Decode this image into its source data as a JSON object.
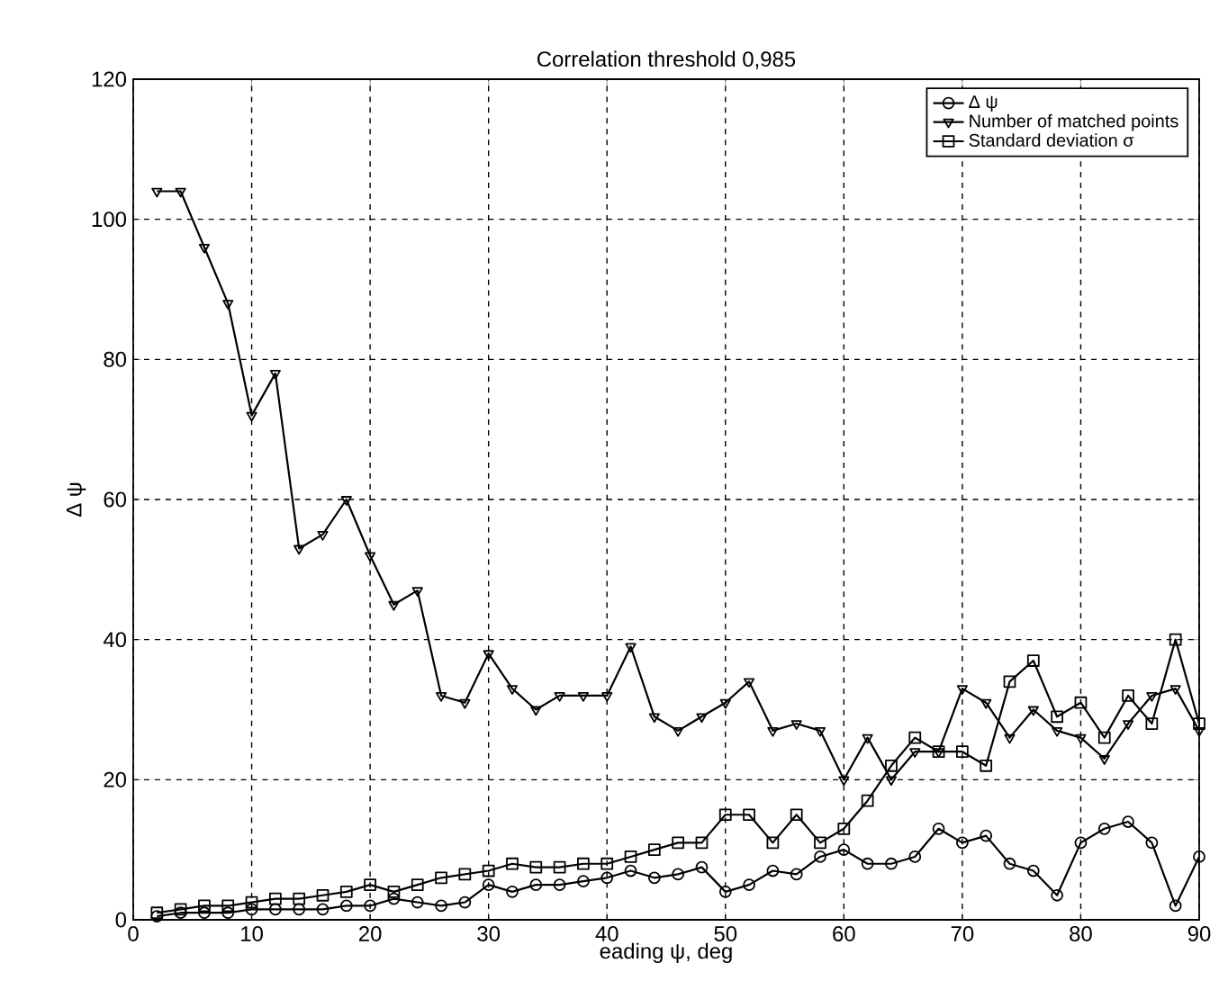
{
  "chart_data": {
    "type": "line",
    "title": "Correlation threshold 0,985",
    "xlabel": "eading ψ, deg",
    "ylabel": "Δ ψ",
    "x": [
      2,
      4,
      6,
      8,
      10,
      12,
      14,
      16,
      18,
      20,
      22,
      24,
      26,
      28,
      30,
      32,
      34,
      36,
      38,
      40,
      42,
      44,
      46,
      48,
      50,
      52,
      54,
      56,
      58,
      60,
      62,
      64,
      66,
      68,
      70,
      72,
      74,
      76,
      78,
      80,
      82,
      84,
      86,
      88,
      90
    ],
    "series": [
      {
        "name": "Δ ψ",
        "color": "#000000",
        "marker": "circle",
        "values": [
          0.5,
          1,
          1,
          1,
          1.5,
          1.5,
          1.5,
          1.5,
          2,
          2,
          3,
          2.5,
          2,
          2.5,
          5,
          4,
          5,
          5,
          5.5,
          6,
          7,
          6,
          6.5,
          7.5,
          4,
          5,
          7,
          6.5,
          9,
          10,
          8,
          8,
          9,
          13,
          11,
          12,
          8,
          7,
          3.5,
          11,
          13,
          14,
          11,
          2,
          9
        ]
      },
      {
        "name": "Number of matched points",
        "color": "#000000",
        "marker": "triangle",
        "values": [
          104,
          104,
          96,
          88,
          72,
          78,
          53,
          55,
          60,
          52,
          45,
          47,
          32,
          31,
          38,
          33,
          30,
          32,
          32,
          32,
          39,
          29,
          27,
          29,
          31,
          34,
          27,
          28,
          27,
          20,
          26,
          20,
          24,
          24,
          33,
          31,
          26,
          30,
          27,
          26,
          23,
          28,
          32,
          33,
          27
        ]
      },
      {
        "name": "Standard deviation σ",
        "color": "#000000",
        "marker": "square",
        "values": [
          1,
          1.5,
          2,
          2,
          2.5,
          3,
          3,
          3.5,
          4,
          5,
          4,
          5,
          6,
          6.5,
          7,
          8,
          7.5,
          7.5,
          8,
          8,
          9,
          10,
          11,
          11,
          15,
          15,
          11,
          15,
          11,
          13,
          17,
          22,
          26,
          24,
          24,
          22,
          34,
          37,
          29,
          31,
          26,
          32,
          28,
          40,
          28
        ]
      }
    ],
    "xlim": [
      0,
      90
    ],
    "ylim": [
      0,
      120
    ],
    "xticks": [
      0,
      10,
      20,
      30,
      40,
      50,
      60,
      70,
      80,
      90
    ],
    "yticks": [
      0,
      20,
      40,
      60,
      80,
      100,
      120
    ],
    "grid": true,
    "legend": "top right",
    "line_style": "solid"
  }
}
